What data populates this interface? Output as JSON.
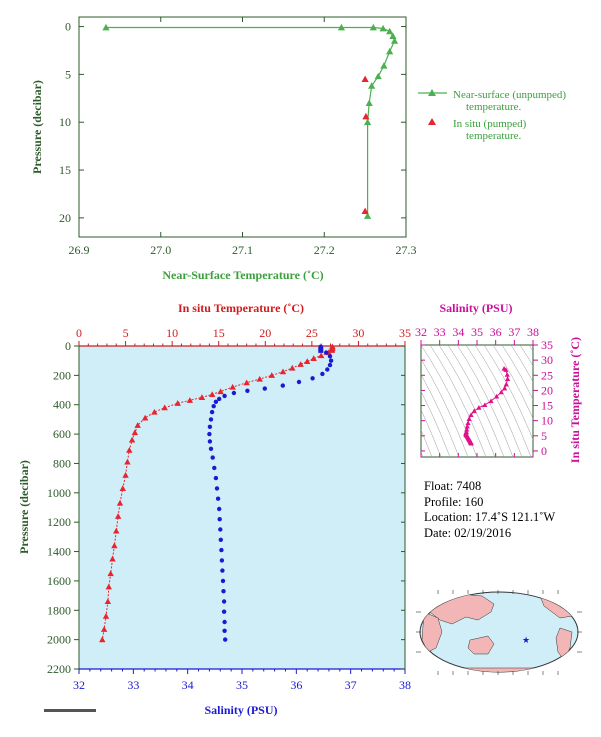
{
  "chart_data": [
    {
      "type": "line",
      "xlabel": "Near-Surface Temperature (˚C)",
      "ylabel": "Pressure (decibar)",
      "xlim": [
        26.9,
        27.3
      ],
      "ylim": [
        22,
        -1
      ],
      "x_ticks": [
        "26.9",
        "27.0",
        "27.1",
        "27.2",
        "27.3"
      ],
      "y_ticks": [
        "0",
        "5",
        "10",
        "15",
        "20"
      ],
      "legend_position": "right",
      "series": [
        {
          "name": "Near-surface (unpumped) temperature.",
          "color": "#4cb050",
          "marker": "triangle",
          "line": true,
          "x": [
            26.933,
            27.221,
            27.26,
            27.272,
            27.28,
            27.284,
            27.286,
            27.28,
            27.273,
            27.266,
            27.258,
            27.255,
            27.253,
            27.253
          ],
          "y": [
            0.1,
            0.1,
            0.1,
            0.2,
            0.5,
            1.0,
            1.5,
            2.6,
            4.1,
            5.2,
            6.2,
            8.0,
            10.0,
            19.8
          ]
        },
        {
          "name": "In situ (pumped) temperature.",
          "color": "#e8242e",
          "marker": "triangle",
          "line": false,
          "x": [
            27.25,
            27.251,
            27.25
          ],
          "y": [
            5.5,
            9.4,
            19.3
          ]
        }
      ]
    },
    {
      "type": "line",
      "top_xlabel": "In situ Temperature (˚C)",
      "bottom_xlabel": "Salinity (PSU)",
      "ylabel": "Pressure (decibar)",
      "temp_xlim": [
        0,
        35
      ],
      "salinity_xlim": [
        32,
        38
      ],
      "ylim": [
        2200,
        0
      ],
      "temp_ticks": [
        "0",
        "5",
        "10",
        "15",
        "20",
        "25",
        "30",
        "35"
      ],
      "salinity_ticks": [
        "32",
        "33",
        "34",
        "35",
        "36",
        "37",
        "38"
      ],
      "y_ticks": [
        "0",
        "200",
        "400",
        "600",
        "800",
        "1000",
        "1200",
        "1400",
        "1600",
        "1800",
        "2000",
        "2200"
      ],
      "series": [
        {
          "name": "In situ Temperature",
          "axis": "temperature",
          "color": "#e8242e",
          "marker": "triangle",
          "points": [
            [
              27.2,
              5
            ],
            [
              27.2,
              15
            ],
            [
              27.1,
              25
            ],
            [
              26.8,
              45
            ],
            [
              26.0,
              65
            ],
            [
              25.2,
              85
            ],
            [
              24.5,
              105
            ],
            [
              23.8,
              125
            ],
            [
              22.9,
              150
            ],
            [
              21.9,
              175
            ],
            [
              20.7,
              200
            ],
            [
              19.4,
              225
            ],
            [
              18.0,
              250
            ],
            [
              16.5,
              280
            ],
            [
              15.2,
              310
            ],
            [
              14.3,
              330
            ],
            [
              13.2,
              350
            ],
            [
              11.9,
              370
            ],
            [
              10.6,
              390
            ],
            [
              9.2,
              420
            ],
            [
              8.1,
              450
            ],
            [
              7.1,
              490
            ],
            [
              6.3,
              540
            ],
            [
              6.0,
              590
            ],
            [
              5.7,
              640
            ],
            [
              5.4,
              710
            ],
            [
              5.2,
              790
            ],
            [
              5.0,
              880
            ],
            [
              4.7,
              970
            ],
            [
              4.4,
              1070
            ],
            [
              4.2,
              1160
            ],
            [
              4.0,
              1260
            ],
            [
              3.8,
              1360
            ],
            [
              3.6,
              1450
            ],
            [
              3.4,
              1550
            ],
            [
              3.2,
              1640
            ],
            [
              3.1,
              1740
            ],
            [
              2.9,
              1840
            ],
            [
              2.7,
              1930
            ],
            [
              2.5,
              2000
            ]
          ]
        },
        {
          "name": "Salinity",
          "axis": "salinity",
          "color": "#1a1ad4",
          "marker": "circle",
          "points": [
            [
              36.45,
              5
            ],
            [
              36.45,
              25
            ],
            [
              36.55,
              45
            ],
            [
              36.62,
              70
            ],
            [
              36.64,
              100
            ],
            [
              36.62,
              130
            ],
            [
              36.57,
              160
            ],
            [
              36.48,
              190
            ],
            [
              36.3,
              220
            ],
            [
              36.05,
              245
            ],
            [
              35.75,
              270
            ],
            [
              35.42,
              290
            ],
            [
              35.1,
              305
            ],
            [
              34.85,
              320
            ],
            [
              34.68,
              340
            ],
            [
              34.58,
              360
            ],
            [
              34.52,
              380
            ],
            [
              34.48,
              410
            ],
            [
              34.45,
              450
            ],
            [
              34.43,
              500
            ],
            [
              34.41,
              550
            ],
            [
              34.4,
              600
            ],
            [
              34.41,
              650
            ],
            [
              34.43,
              700
            ],
            [
              34.46,
              760
            ],
            [
              34.49,
              830
            ],
            [
              34.52,
              900
            ],
            [
              34.54,
              970
            ],
            [
              34.56,
              1040
            ],
            [
              34.58,
              1110
            ],
            [
              34.59,
              1180
            ],
            [
              34.6,
              1250
            ],
            [
              34.61,
              1320
            ],
            [
              34.62,
              1390
            ],
            [
              34.63,
              1460
            ],
            [
              34.64,
              1530
            ],
            [
              34.65,
              1600
            ],
            [
              34.66,
              1670
            ],
            [
              34.67,
              1740
            ],
            [
              34.67,
              1810
            ],
            [
              34.68,
              1880
            ],
            [
              34.68,
              1940
            ],
            [
              34.69,
              2000
            ]
          ]
        }
      ]
    },
    {
      "type": "scatter",
      "xlabel": "Salinity (PSU)",
      "ylabel": "In situ Temperature (˚C)",
      "xlim": [
        32,
        38
      ],
      "ylim": [
        -2,
        35
      ],
      "x_ticks": [
        "32",
        "33",
        "34",
        "35",
        "36",
        "37",
        "38"
      ],
      "y_ticks": [
        "0",
        "5",
        "10",
        "15",
        "20",
        "25",
        "30",
        "35"
      ],
      "color": "#e0128a",
      "points": [
        [
          36.45,
          27.2
        ],
        [
          36.55,
          26.8
        ],
        [
          36.62,
          25.2
        ],
        [
          36.64,
          23.8
        ],
        [
          36.57,
          22.0
        ],
        [
          36.48,
          20.7
        ],
        [
          36.3,
          19.4
        ],
        [
          36.05,
          18.0
        ],
        [
          35.75,
          16.5
        ],
        [
          35.42,
          15.2
        ],
        [
          35.1,
          14.3
        ],
        [
          34.85,
          13.2
        ],
        [
          34.68,
          11.9
        ],
        [
          34.58,
          10.6
        ],
        [
          34.52,
          9.2
        ],
        [
          34.48,
          8.1
        ],
        [
          34.45,
          7.1
        ],
        [
          34.43,
          6.3
        ],
        [
          34.41,
          6.0
        ],
        [
          34.4,
          5.7
        ],
        [
          34.41,
          5.4
        ],
        [
          34.43,
          5.2
        ],
        [
          34.46,
          5.0
        ],
        [
          34.49,
          4.7
        ],
        [
          34.52,
          4.4
        ],
        [
          34.54,
          4.2
        ],
        [
          34.56,
          4.0
        ],
        [
          34.58,
          3.8
        ],
        [
          34.6,
          3.6
        ],
        [
          34.62,
          3.4
        ],
        [
          34.64,
          3.2
        ],
        [
          34.66,
          3.0
        ],
        [
          34.67,
          2.8
        ],
        [
          34.68,
          2.6
        ],
        [
          34.69,
          2.5
        ]
      ]
    }
  ],
  "info": {
    "float": "Float:  7408",
    "profile": "Profile:  160",
    "location": "Location:  17.4˚S  121.1˚W",
    "date": "Date:  02/19/2016"
  },
  "colors": {
    "axis_green": "#2d5a2a",
    "label_green": "#3aa13c",
    "temp_red": "#d01c1c",
    "salinity_blue": "#1a1ad4",
    "ts_magenta": "#cc0f9a",
    "plot_bg": "#d0eef8"
  }
}
